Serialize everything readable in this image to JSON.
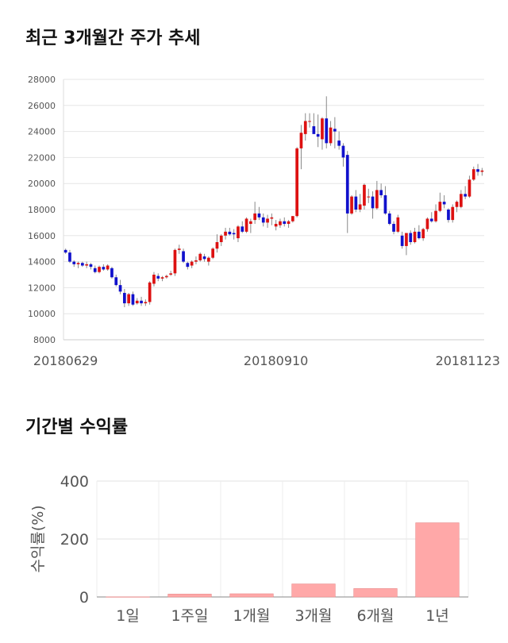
{
  "stock_section": {
    "title": "최근 3개월간 주가 추세"
  },
  "returns_section": {
    "title": "기간별 수익률"
  },
  "chart_data": [
    {
      "type": "candlestick",
      "title": "최근 3개월간 주가 추세",
      "ylim": [
        8000,
        28000
      ],
      "y_ticks": [
        "28000",
        "26000",
        "24000",
        "22000",
        "20000",
        "18000",
        "16000",
        "14000",
        "12000",
        "10000",
        "8000"
      ],
      "x_ticks": [
        "20180629",
        "20180910",
        "20181123"
      ],
      "x_tick_index": [
        0,
        50,
        99
      ],
      "colors": {
        "up": "#dd1111",
        "down": "#1111cc",
        "wick": "#888888"
      },
      "candles": [
        [
          14900,
          15000,
          14600,
          14700
        ],
        [
          14700,
          14900,
          13900,
          14000
        ],
        [
          14000,
          14100,
          13600,
          13800
        ],
        [
          13800,
          14000,
          13500,
          13900
        ],
        [
          13900,
          14000,
          13600,
          13700
        ],
        [
          13700,
          14000,
          13500,
          13800
        ],
        [
          13800,
          13900,
          13400,
          13600
        ],
        [
          13500,
          13700,
          13100,
          13200
        ],
        [
          13200,
          13700,
          13100,
          13600
        ],
        [
          13600,
          13800,
          13300,
          13400
        ],
        [
          13400,
          13800,
          13300,
          13700
        ],
        [
          13500,
          13600,
          12700,
          12800
        ],
        [
          12800,
          13000,
          12100,
          12200
        ],
        [
          12200,
          12600,
          11500,
          11700
        ],
        [
          11600,
          11900,
          10500,
          10800
        ],
        [
          10800,
          11600,
          10600,
          11500
        ],
        [
          11500,
          11700,
          10600,
          10700
        ],
        [
          10800,
          11200,
          10700,
          11000
        ],
        [
          11000,
          11300,
          10600,
          10800
        ],
        [
          10800,
          11100,
          10600,
          10900
        ],
        [
          10900,
          12500,
          10700,
          12400
        ],
        [
          12300,
          13200,
          12100,
          13000
        ],
        [
          12900,
          13100,
          12500,
          12700
        ],
        [
          12700,
          12900,
          12500,
          12800
        ],
        [
          12800,
          13000,
          12700,
          12900
        ],
        [
          13000,
          13300,
          12900,
          13100
        ],
        [
          13100,
          15000,
          12900,
          14900
        ],
        [
          14900,
          15300,
          14600,
          15000
        ],
        [
          14800,
          15000,
          13900,
          14000
        ],
        [
          13900,
          14000,
          13400,
          13600
        ],
        [
          13700,
          14100,
          13500,
          14000
        ],
        [
          14000,
          14400,
          13800,
          14100
        ],
        [
          14100,
          14700,
          14000,
          14600
        ],
        [
          14400,
          14600,
          14000,
          14200
        ],
        [
          14000,
          14400,
          13700,
          14300
        ],
        [
          14300,
          15100,
          14200,
          15000
        ],
        [
          15000,
          16100,
          14700,
          15500
        ],
        [
          15500,
          16100,
          15200,
          16000
        ],
        [
          16000,
          16600,
          15700,
          16300
        ],
        [
          16300,
          16600,
          16000,
          16100
        ],
        [
          16200,
          16500,
          15700,
          16100
        ],
        [
          15800,
          16800,
          15500,
          16700
        ],
        [
          16700,
          17100,
          16200,
          16300
        ],
        [
          16300,
          17400,
          16200,
          17300
        ],
        [
          16900,
          17300,
          16200,
          17100
        ],
        [
          17200,
          18600,
          16900,
          17700
        ],
        [
          17700,
          18200,
          17200,
          17400
        ],
        [
          17400,
          17700,
          16700,
          17000
        ],
        [
          17000,
          17600,
          16600,
          17300
        ],
        [
          17300,
          17700,
          16800,
          17400
        ],
        [
          16700,
          17200,
          16400,
          16900
        ],
        [
          16800,
          17300,
          16600,
          17100
        ],
        [
          17100,
          17400,
          16700,
          16900
        ],
        [
          16900,
          17200,
          16600,
          17100
        ],
        [
          17100,
          17500,
          17000,
          17500
        ],
        [
          17500,
          22800,
          17400,
          22700
        ],
        [
          22700,
          24500,
          21100,
          23900
        ],
        [
          23800,
          25400,
          23300,
          24800
        ],
        [
          24800,
          25400,
          24300,
          24800
        ],
        [
          24400,
          25400,
          23900,
          23800
        ],
        [
          23800,
          25300,
          22800,
          23600
        ],
        [
          23400,
          25100,
          22600,
          25000
        ],
        [
          25000,
          26700,
          22700,
          23100
        ],
        [
          23100,
          24800,
          22900,
          24300
        ],
        [
          24200,
          25100,
          22700,
          24000
        ],
        [
          23300,
          24000,
          22600,
          22900
        ],
        [
          22900,
          23100,
          21300,
          22000
        ],
        [
          22200,
          22500,
          16200,
          17700
        ],
        [
          17700,
          19100,
          17600,
          19000
        ],
        [
          19000,
          19500,
          17800,
          18000
        ],
        [
          18000,
          19200,
          17800,
          18400
        ],
        [
          18300,
          20000,
          18000,
          19900
        ],
        [
          19000,
          19600,
          18500,
          19000
        ],
        [
          19000,
          19400,
          17300,
          18100
        ],
        [
          18100,
          20200,
          18000,
          19500
        ],
        [
          19500,
          20000,
          18900,
          19100
        ],
        [
          19100,
          19800,
          17600,
          17700
        ],
        [
          17700,
          17900,
          16800,
          16900
        ],
        [
          16900,
          17100,
          16100,
          16300
        ],
        [
          16300,
          17600,
          16200,
          17400
        ],
        [
          16000,
          16300,
          15000,
          15200
        ],
        [
          15200,
          16200,
          14500,
          16200
        ],
        [
          16200,
          16400,
          15300,
          15500
        ],
        [
          15500,
          16600,
          15400,
          16300
        ],
        [
          16300,
          16800,
          15700,
          15800
        ],
        [
          15800,
          16600,
          15600,
          16500
        ],
        [
          16500,
          17400,
          16300,
          17300
        ],
        [
          17300,
          17800,
          17000,
          17100
        ],
        [
          17100,
          18400,
          17000,
          17900
        ],
        [
          17900,
          19300,
          17800,
          18600
        ],
        [
          18600,
          19100,
          18100,
          18400
        ],
        [
          18000,
          18100,
          17000,
          17200
        ],
        [
          17200,
          18400,
          17000,
          18200
        ],
        [
          18200,
          18700,
          17800,
          18600
        ],
        [
          18200,
          19500,
          18100,
          19200
        ],
        [
          19200,
          19800,
          18800,
          19000
        ],
        [
          19000,
          20600,
          18900,
          20300
        ],
        [
          20300,
          21300,
          20200,
          21100
        ],
        [
          21100,
          21500,
          20600,
          20900
        ],
        [
          20900,
          21200,
          20600,
          21000
        ]
      ]
    },
    {
      "type": "bar",
      "title": "기간별 수익률",
      "ylabel": "수익률(%)",
      "ylim": [
        0,
        400
      ],
      "y_ticks": [
        "400",
        "200",
        "0"
      ],
      "categories": [
        "1일",
        "1주일",
        "1개월",
        "3개월",
        "6개월",
        "1년"
      ],
      "values": [
        0.5,
        10,
        11,
        45,
        29,
        256
      ],
      "bar_color": "#ffa8a8"
    }
  ]
}
